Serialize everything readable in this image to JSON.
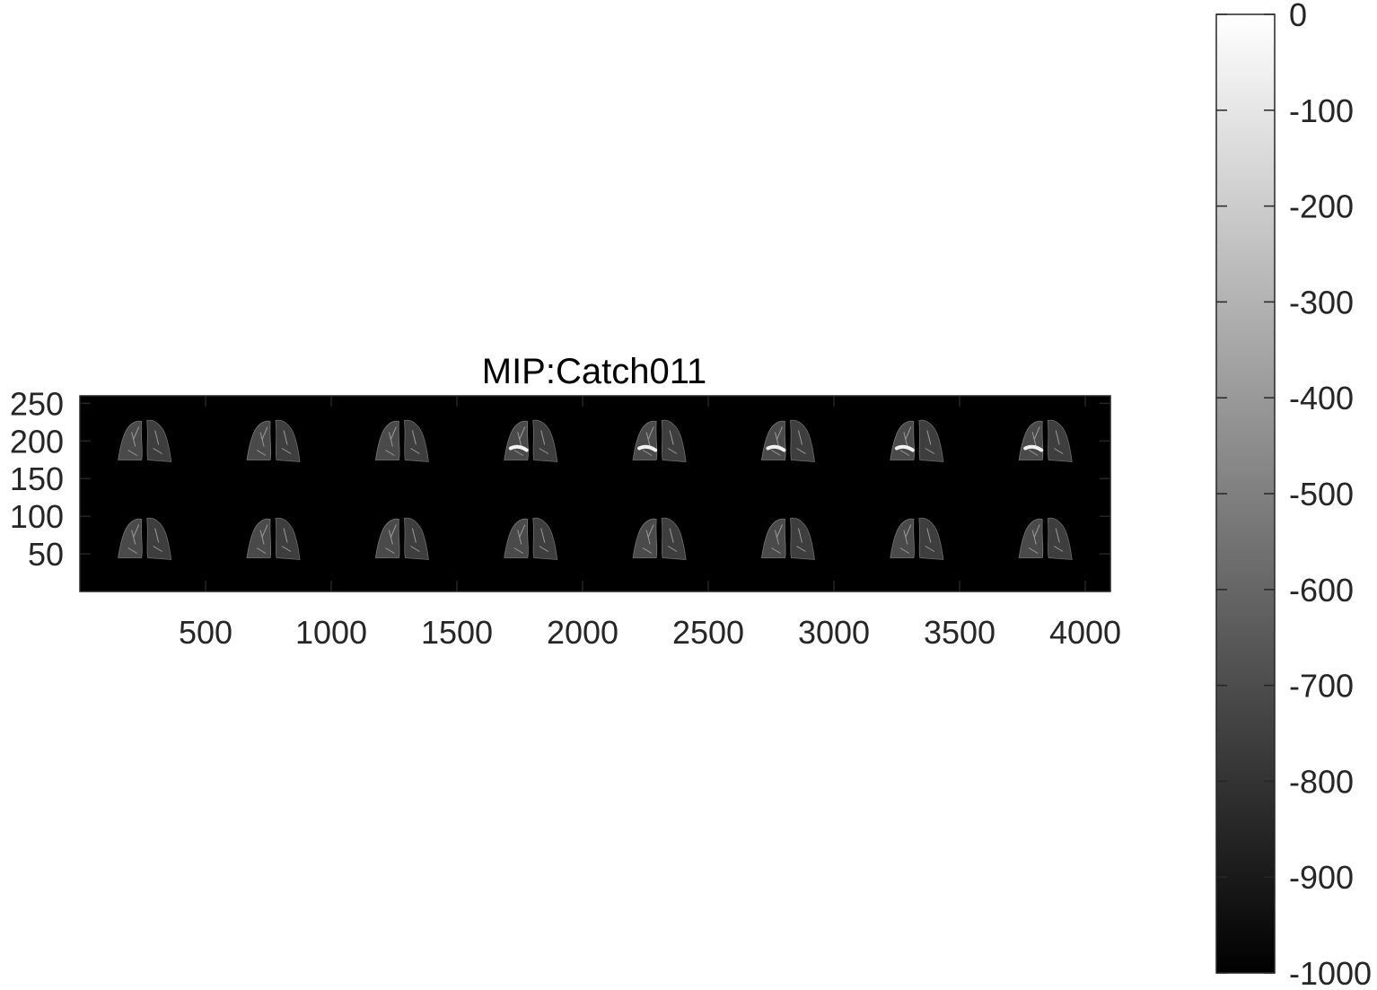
{
  "chart_data": {
    "type": "heatmap",
    "title": "MIP:Catch011",
    "xlabel": "",
    "ylabel": "",
    "xlim": [
      0,
      4100
    ],
    "ylim": [
      0,
      260
    ],
    "x_ticks": [
      500,
      1000,
      1500,
      2000,
      2500,
      3000,
      3500,
      4000
    ],
    "y_ticks": [
      50,
      100,
      150,
      200,
      250
    ],
    "grid": false,
    "colormap": "gray",
    "background_color": "#000000",
    "colorbar": {
      "range": [
        -1000,
        0
      ],
      "ticks": [
        0,
        -100,
        -200,
        -300,
        -400,
        -500,
        -600,
        -700,
        -800,
        -900,
        -1000
      ]
    },
    "tiles": {
      "rows": 2,
      "cols": 8,
      "row_centers_y": [
        195,
        65
      ],
      "col_centers_x": [
        256,
        768,
        1280,
        1792,
        2304,
        2816,
        3328,
        3840
      ],
      "bright_region_tiles": [
        [
          0,
          3
        ],
        [
          0,
          4
        ],
        [
          0,
          5
        ],
        [
          0,
          6
        ],
        [
          0,
          7
        ]
      ]
    }
  }
}
